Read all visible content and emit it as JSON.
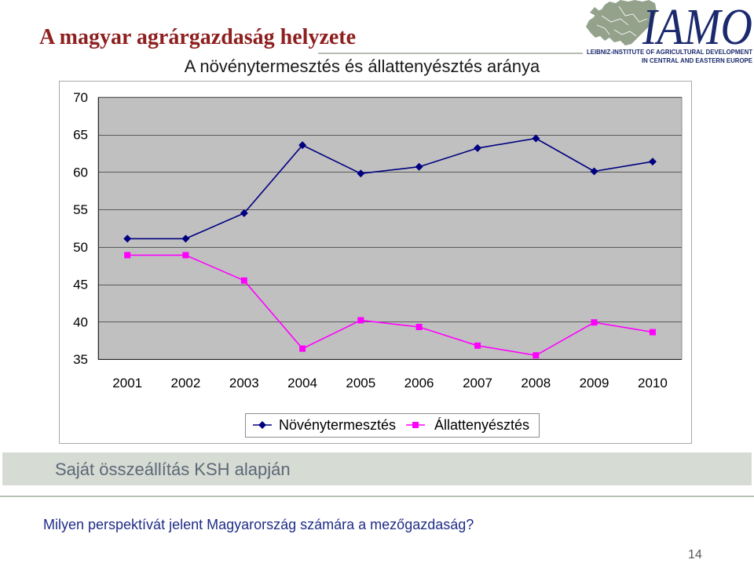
{
  "slide": {
    "title": "A magyar agrárgazdaság helyzete",
    "source_note": "Saját összeállítás KSH alapján",
    "question": "Milyen perspektívát jelent Magyarország számára a mezőgazdaság?",
    "page_number": "14",
    "title_color": "#8e1f1f",
    "source_color": "#5b6876",
    "question_color": "#1f2c87"
  },
  "logo": {
    "name": "IAMO",
    "line1": "LEIBNIZ-INSTITUTE OF AGRICULTURAL DEVELOPMENT",
    "line2": "IN CENTRAL AND EASTERN EUROPE",
    "icon": "europe-map-icon",
    "color": "#1b2a6e",
    "map_color": "#94a28c"
  },
  "chart_data": {
    "type": "line",
    "title": "A növénytermesztés és állattenyésztés aránya",
    "categories": [
      "2001",
      "2002",
      "2003",
      "2004",
      "2005",
      "2006",
      "2007",
      "2008",
      "2009",
      "2010"
    ],
    "xlabel": "",
    "ylabel": "",
    "ylim": [
      35,
      70
    ],
    "y_ticks": [
      70,
      65,
      60,
      55,
      50,
      45,
      40,
      35
    ],
    "grid": true,
    "legend": "bottom",
    "plot_background": "#c0c0c0",
    "series": [
      {
        "name": "Növénytermesztés",
        "values": [
          51.1,
          51.1,
          54.5,
          63.6,
          59.8,
          60.7,
          63.2,
          64.5,
          60.1,
          61.4
        ],
        "color": "#000080",
        "marker": "diamond"
      },
      {
        "name": "Állattenyésztés",
        "values": [
          48.9,
          48.9,
          45.5,
          36.4,
          40.2,
          39.3,
          36.8,
          35.5,
          39.9,
          38.6
        ],
        "color": "#ff00ff",
        "marker": "square"
      }
    ]
  }
}
